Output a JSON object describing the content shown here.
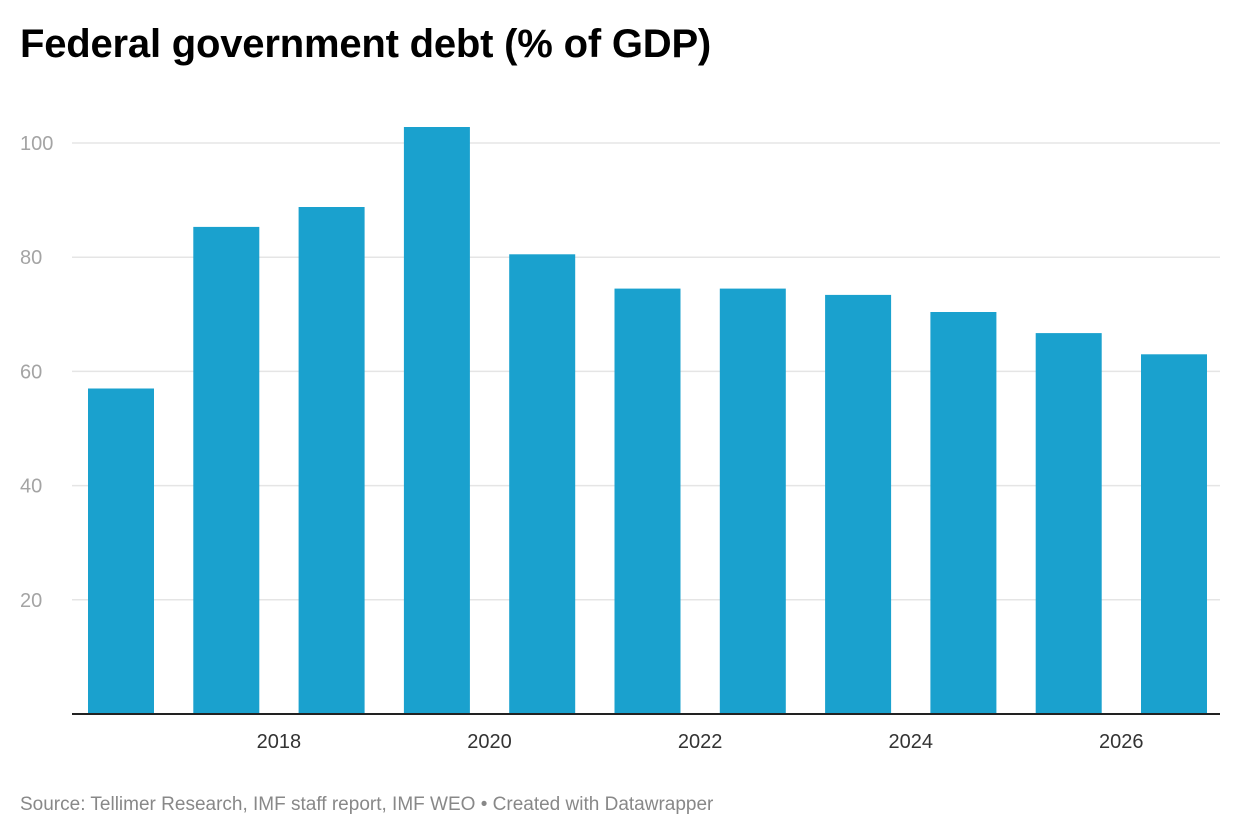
{
  "footer": {
    "source_label": "Source:",
    "source_text": "Tellimer Research, IMF staff report, IMF WEO",
    "separator": "•",
    "credit": "Created with Datawrapper"
  },
  "colors": {
    "bar": "#1aa1ce",
    "grid": "#e5e5e5",
    "axis": "#222222",
    "y_tick": "#a4a4a4",
    "x_tick": "#333333"
  },
  "chart_data": {
    "type": "bar",
    "title": "Federal government debt (% of GDP)",
    "xlabel": "",
    "ylabel": "",
    "categories": [
      "2017",
      "2018",
      "2019",
      "2020",
      "2021",
      "2022",
      "2023",
      "2024",
      "2025",
      "2026",
      "2027"
    ],
    "values": [
      57,
      85.3,
      88.8,
      102.8,
      80.5,
      74.5,
      74.5,
      73.4,
      70.4,
      66.7,
      63
    ],
    "x_tick_labels": [
      "2018",
      "2020",
      "2022",
      "2024",
      "2026"
    ],
    "y_ticks": [
      20,
      40,
      60,
      80,
      100
    ],
    "ylim": [
      0,
      105
    ],
    "grid": true,
    "legend": "none"
  }
}
